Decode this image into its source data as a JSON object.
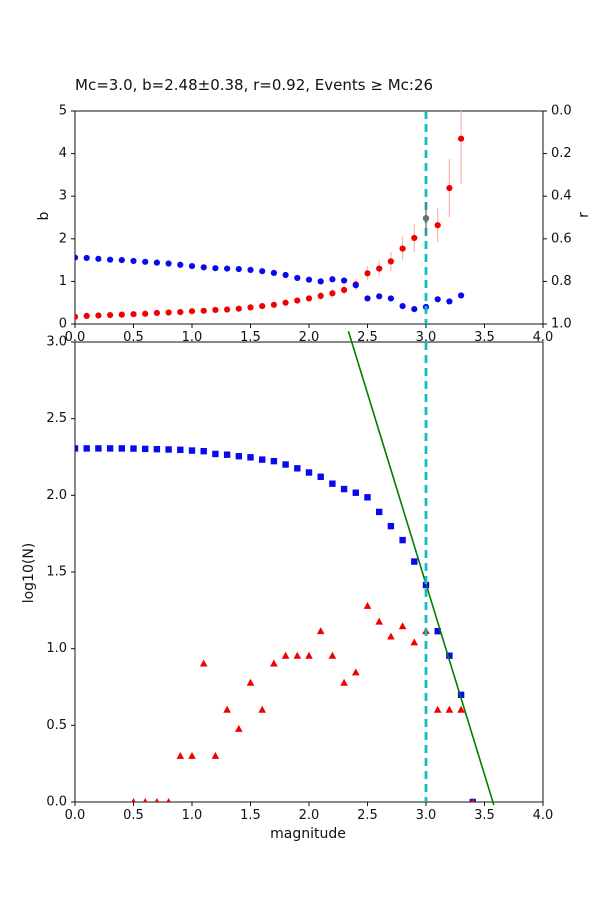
{
  "figure": {
    "background": "#ffffff",
    "title": "Mc=3.0, b=2.48±0.38, r=0.92, Events ≥ Mc:26"
  },
  "chart_data": [
    {
      "name": "b-and-r-vs-cutoff-magnitude",
      "type": "scatter",
      "title": "Mc=3.0, b=2.48±0.38, r=0.92, Events ≥ Mc:26",
      "xlabel": "",
      "ylabel_left": "b",
      "ylabel_right": "r",
      "xlim": [
        0,
        4
      ],
      "x_ticks": [
        0,
        0.5,
        1,
        1.5,
        2,
        2.5,
        3,
        3.5,
        4
      ],
      "x_tick_labels": [
        "0.0",
        "0.5",
        "1.0",
        "1.5",
        "2.0",
        "2.5",
        "3.0",
        "3.5",
        "4.0"
      ],
      "axes": {
        "left": {
          "min": 0,
          "max": 5,
          "inverted": false,
          "ticks": [
            0,
            1,
            2,
            3,
            4,
            5
          ],
          "tick_labels": [
            "0",
            "1",
            "2",
            "3",
            "4",
            "5"
          ]
        },
        "right": {
          "min": 0,
          "max": 1,
          "inverted": true,
          "ticks": [
            0,
            0.2,
            0.4,
            0.6,
            0.8,
            1.0
          ],
          "tick_labels": [
            "0.0",
            "0.2",
            "0.4",
            "0.6",
            "0.8",
            "1.0"
          ]
        }
      },
      "x": [
        0.0,
        0.1,
        0.2,
        0.3,
        0.4,
        0.5,
        0.6,
        0.7,
        0.8,
        0.9,
        1.0,
        1.1,
        1.2,
        1.3,
        1.4,
        1.5,
        1.6,
        1.7,
        1.8,
        1.9,
        2.0,
        2.1,
        2.2,
        2.3,
        2.4,
        2.5,
        2.6,
        2.7,
        2.8,
        2.9,
        3.0,
        3.1,
        3.2,
        3.3
      ],
      "series": [
        {
          "name": "b-value-series",
          "marker": "circle",
          "axis": "left",
          "color": "#f10000",
          "err_color": "#ffb3b3",
          "y": [
            0.17,
            0.19,
            0.2,
            0.21,
            0.22,
            0.23,
            0.24,
            0.26,
            0.27,
            0.28,
            0.3,
            0.31,
            0.33,
            0.34,
            0.36,
            0.39,
            0.42,
            0.45,
            0.5,
            0.55,
            0.6,
            0.66,
            0.72,
            0.8,
            0.93,
            1.19,
            1.3,
            1.47,
            1.77,
            2.02,
            2.48,
            2.32,
            3.19,
            4.35
          ],
          "yerr": [
            0.02,
            0.02,
            0.02,
            0.02,
            0.02,
            0.02,
            0.03,
            0.03,
            0.03,
            0.03,
            0.03,
            0.03,
            0.04,
            0.04,
            0.04,
            0.05,
            0.05,
            0.06,
            0.06,
            0.07,
            0.08,
            0.09,
            0.1,
            0.11,
            0.13,
            0.17,
            0.19,
            0.22,
            0.28,
            0.33,
            0.38,
            0.4,
            0.68,
            1.05
          ]
        },
        {
          "name": "r-value-series",
          "marker": "circle",
          "axis": "right",
          "color": "#0909ef",
          "y": [
            0.688,
            0.69,
            0.694,
            0.698,
            0.7,
            0.704,
            0.708,
            0.712,
            0.716,
            0.722,
            0.728,
            0.734,
            0.738,
            0.74,
            0.742,
            0.746,
            0.752,
            0.76,
            0.77,
            0.784,
            0.792,
            0.8,
            0.79,
            0.796,
            0.818,
            0.88,
            0.87,
            0.88,
            0.916,
            0.93,
            0.92,
            0.884,
            0.894,
            0.866
          ]
        }
      ],
      "overlay_point": {
        "name": "mc-selected-b-point",
        "x": 3.0,
        "y": 2.48,
        "yerr": 0.38,
        "color": "#6f6f6f"
      },
      "vline": {
        "x": 3.0,
        "color": "#12bdbf",
        "style": "dashed"
      }
    },
    {
      "name": "frequency-magnitude-distribution",
      "type": "scatter",
      "xlabel": "magnitude",
      "ylabel": "log10(N)",
      "xlim": [
        0,
        4
      ],
      "x_ticks": [
        0,
        0.5,
        1,
        1.5,
        2,
        2.5,
        3,
        3.5,
        4
      ],
      "x_tick_labels": [
        "0.0",
        "0.5",
        "1.0",
        "1.5",
        "2.0",
        "2.5",
        "3.0",
        "3.5",
        "4.0"
      ],
      "axes": {
        "left": {
          "min": 0,
          "max": 3,
          "inverted": false,
          "ticks": [
            0,
            0.5,
            1,
            1.5,
            2,
            2.5,
            3
          ],
          "tick_labels": [
            "0.0",
            "0.5",
            "1.0",
            "1.5",
            "2.0",
            "2.5",
            "3.0"
          ]
        }
      },
      "series": [
        {
          "name": "cumulative-count-series",
          "marker": "square",
          "axis": "left",
          "color": "#0909ef",
          "x": [
            0.0,
            0.1,
            0.2,
            0.3,
            0.4,
            0.5,
            0.6,
            0.7,
            0.8,
            0.9,
            1.0,
            1.1,
            1.2,
            1.3,
            1.4,
            1.5,
            1.6,
            1.7,
            1.8,
            1.9,
            2.0,
            2.1,
            2.2,
            2.3,
            2.4,
            2.5,
            2.6,
            2.7,
            2.8,
            2.9,
            3.0,
            3.1,
            3.2,
            3.3,
            3.4
          ],
          "y": [
            2.306,
            2.306,
            2.306,
            2.306,
            2.306,
            2.305,
            2.303,
            2.301,
            2.299,
            2.297,
            2.292,
            2.288,
            2.27,
            2.265,
            2.255,
            2.248,
            2.233,
            2.223,
            2.201,
            2.176,
            2.149,
            2.121,
            2.076,
            2.041,
            2.017,
            1.987,
            1.892,
            1.799,
            1.708,
            1.568,
            1.415,
            1.114,
            0.954,
            0.699,
            0.0
          ]
        },
        {
          "name": "bin-count-series",
          "marker": "triangle",
          "axis": "left",
          "color": "#f10000",
          "x": [
            0.5,
            0.6,
            0.7,
            0.8,
            0.9,
            1.0,
            1.1,
            1.2,
            1.3,
            1.4,
            1.5,
            1.6,
            1.7,
            1.8,
            1.9,
            2.0,
            2.1,
            2.2,
            2.3,
            2.4,
            2.5,
            2.6,
            2.7,
            2.8,
            2.9,
            3.0,
            3.1,
            3.2,
            3.3,
            3.4
          ],
          "y": [
            0.0,
            0.0,
            0.0,
            0.0,
            0.301,
            0.301,
            0.903,
            0.301,
            0.602,
            0.477,
            0.778,
            0.602,
            0.903,
            0.954,
            0.954,
            0.954,
            1.114,
            0.954,
            0.778,
            0.845,
            1.279,
            1.176,
            1.079,
            1.146,
            1.041,
            1.114,
            0.602,
            0.602,
            0.602,
            0.0
          ]
        }
      ],
      "fit_line": {
        "name": "gr-fit-line",
        "color": "#007e00",
        "slope": -2.48,
        "points": [
          [
            2.337,
            3.07
          ],
          [
            3.58,
            -0.02
          ]
        ]
      },
      "vline": {
        "x": 3.0,
        "color": "#12bdbf",
        "style": "dashed"
      }
    }
  ]
}
